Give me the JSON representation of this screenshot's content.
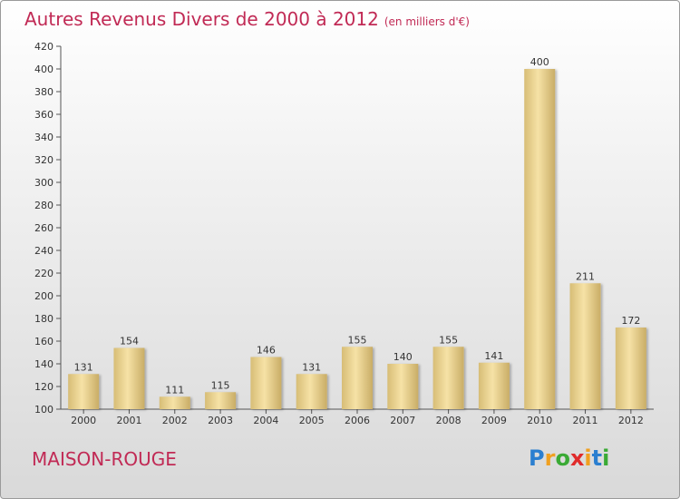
{
  "title": "Autres Revenus Divers de 2000 à 2012",
  "subtitle": "(en milliers d'€)",
  "commune": "MAISON-ROUGE",
  "logo": {
    "text": "Proxiti",
    "letters": [
      "P",
      "r",
      "o",
      "x",
      "i",
      "t",
      "i"
    ],
    "letter_colors": [
      "#2b7fd0",
      "#f0a020",
      "#3aaa35",
      "#e02b2b",
      "#f0a020",
      "#2b7fd0",
      "#3aaa35"
    ]
  },
  "colors": {
    "title": "#c12a55",
    "bar_light": "#f6e2a6",
    "bar_dark": "#c9ad66",
    "grid": "#cccccc",
    "axis": "#555555"
  },
  "chart_data": {
    "type": "bar",
    "categories": [
      "2000",
      "2001",
      "2002",
      "2003",
      "2004",
      "2005",
      "2006",
      "2007",
      "2008",
      "2009",
      "2010",
      "2011",
      "2012"
    ],
    "values": [
      131,
      154,
      111,
      115,
      146,
      131,
      155,
      140,
      155,
      141,
      400,
      211,
      172
    ],
    "ylim": [
      100,
      420
    ],
    "yticks": [
      100,
      120,
      140,
      160,
      180,
      200,
      220,
      240,
      260,
      280,
      300,
      320,
      340,
      360,
      380,
      400,
      420
    ],
    "grid": false,
    "data_labels": true
  }
}
